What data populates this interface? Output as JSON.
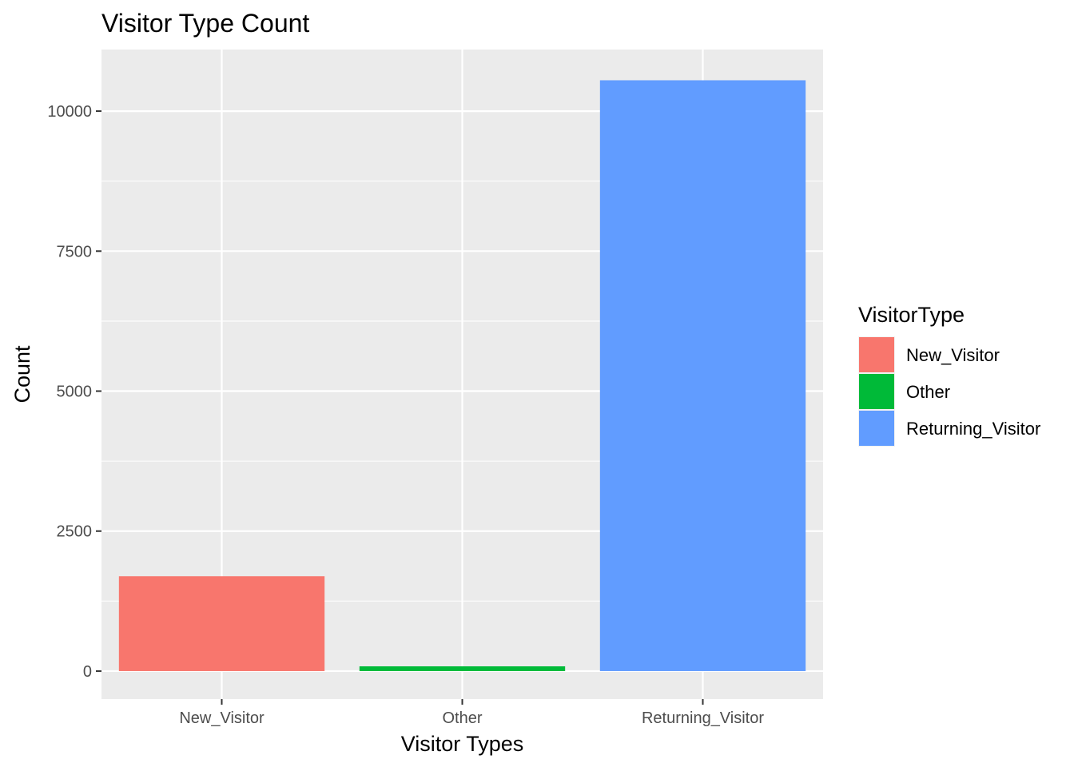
{
  "chart_data": {
    "type": "bar",
    "title": "Visitor Type Count",
    "xlabel": "Visitor Types",
    "ylabel": "Count",
    "categories": [
      "New_Visitor",
      "Other",
      "Returning_Visitor"
    ],
    "values": [
      1694,
      85,
      10551
    ],
    "colors": [
      "#F8766D",
      "#00BA38",
      "#619CFF"
    ],
    "ylim": [
      -500,
      11100
    ],
    "yticks": [
      0,
      2500,
      5000,
      7500,
      10000
    ],
    "ytick_labels": [
      "0",
      "2500",
      "5000",
      "7500",
      "10000"
    ],
    "yminor": [
      1250,
      3750,
      6250,
      8750
    ],
    "grid": true,
    "panel_background": "#EBEBEB",
    "legend": {
      "title": "VisitorType",
      "position": "right",
      "entries": [
        "New_Visitor",
        "Other",
        "Returning_Visitor"
      ]
    }
  }
}
